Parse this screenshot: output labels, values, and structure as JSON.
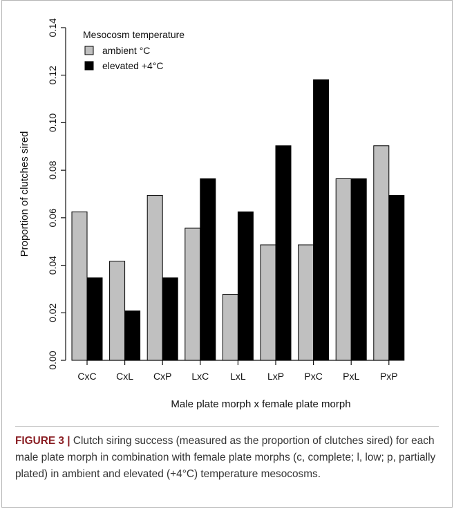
{
  "chart_data": {
    "type": "bar",
    "ylabel": "Proportion of clutches sired",
    "xlabel": "Male plate morph x female plate morph",
    "ylim": [
      0,
      0.14
    ],
    "yticks": [
      "0.00",
      "0.02",
      "0.04",
      "0.06",
      "0.08",
      "0.10",
      "0.12",
      "0.14"
    ],
    "categories": [
      "CxC",
      "CxL",
      "CxP",
      "LxC",
      "LxL",
      "LxP",
      "PxC",
      "PxL",
      "PxP"
    ],
    "legend": {
      "title": "Mesocosm temperature",
      "placement": "top-left"
    },
    "series": [
      {
        "name": "ambient °C",
        "color": "#c0c0c0",
        "values": [
          0.0625,
          0.0417,
          0.0694,
          0.0556,
          0.0278,
          0.0486,
          0.0486,
          0.0764,
          0.0903
        ]
      },
      {
        "name": "elevated +4°C",
        "color": "#000000",
        "values": [
          0.0347,
          0.0208,
          0.0347,
          0.0764,
          0.0625,
          0.0903,
          0.1181,
          0.0764,
          0.0694
        ]
      }
    ]
  },
  "caption": {
    "label": "FIGURE 3",
    "separator": "|",
    "text": "Clutch siring success (measured as the proportion of clutches sired) for each male plate morph in combination with female plate morphs (c, complete; l, low; p, partially plated) in ambient and elevated (+4°C) temperature mesocosms."
  }
}
